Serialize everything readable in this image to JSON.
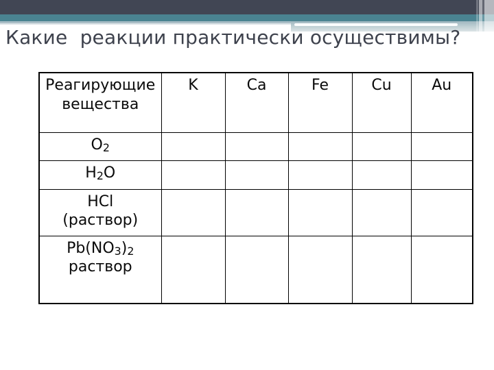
{
  "slide": {
    "title": "Какие  реакции практически осуществимы?"
  },
  "theme": {
    "top_bar_color": "#414654",
    "teal_accent_color": "#4a8391",
    "light_accent_color": "#a9bdc5",
    "title_color": "#3e424d",
    "table_border_color": "#000000",
    "background_color": "#ffffff"
  },
  "table": {
    "header_col0": "Реагирующие\nвещества",
    "metal_columns": [
      "K",
      "Ca",
      "Fe",
      "Cu",
      "Au"
    ],
    "rows": [
      {
        "label": [
          {
            "t": "O"
          },
          {
            "t": "2",
            "sub": true
          }
        ],
        "cells": [
          "",
          "",
          "",
          "",
          ""
        ]
      },
      {
        "label": [
          {
            "t": "H"
          },
          {
            "t": "2",
            "sub": true
          },
          {
            "t": "O"
          }
        ],
        "cells": [
          "",
          "",
          "",
          "",
          ""
        ]
      },
      {
        "label": [
          {
            "t": "HCl\n(раствор)"
          }
        ],
        "cells": [
          "",
          "",
          "",
          "",
          ""
        ]
      },
      {
        "label": [
          {
            "t": "Pb(NO"
          },
          {
            "t": "3",
            "sub": true
          },
          {
            "t": ")"
          },
          {
            "t": "2",
            "sub": true
          },
          {
            "t": "\nраствор"
          }
        ],
        "cells": [
          "",
          "",
          "",
          "",
          ""
        ]
      }
    ]
  }
}
